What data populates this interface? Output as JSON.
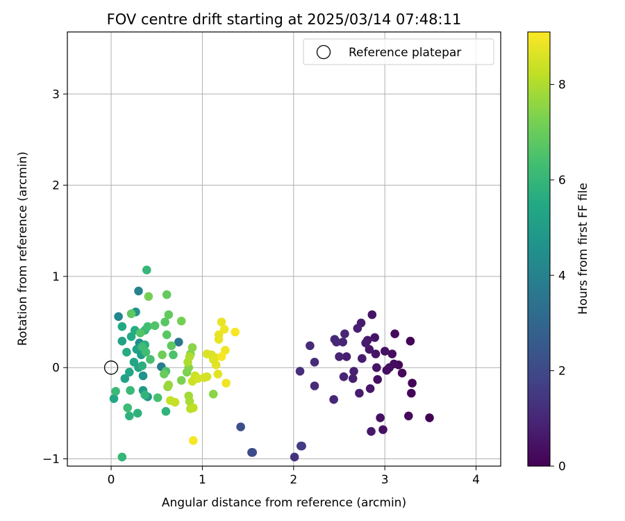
{
  "chart_data": {
    "type": "scatter",
    "title": "FOV centre drift starting at 2025/03/14 07:48:11",
    "xlabel": "Angular distance from reference (arcmin)",
    "ylabel": "Rotation from reference (arcmin)",
    "xlim": [
      -0.48,
      4.27
    ],
    "ylim": [
      -1.08,
      3.68
    ],
    "xticks": [
      "0",
      "1",
      "2",
      "3",
      "4"
    ],
    "yticks": [
      "−1",
      "0",
      "1",
      "2",
      "3"
    ],
    "grid": true,
    "legend": {
      "placement": "top-right",
      "entries": [
        {
          "label": "Reference platepar",
          "marker": "open-circle"
        }
      ]
    },
    "reference_point": {
      "x": 0,
      "y": 0
    },
    "colorbar": {
      "label": "Hours from first FF file",
      "range": [
        0,
        9.1
      ],
      "ticks": [
        "0",
        "2",
        "4",
        "6",
        "8"
      ],
      "colormap": "viridis"
    },
    "points": [
      [
        3.49,
        -0.55,
        0.0
      ],
      [
        3.28,
        0.29,
        0.1
      ],
      [
        3.3,
        -0.17,
        0.1
      ],
      [
        3.29,
        -0.28,
        0.1
      ],
      [
        3.26,
        -0.53,
        0.2
      ],
      [
        3.19,
        -0.06,
        0.2
      ],
      [
        3.15,
        0.03,
        0.2
      ],
      [
        3.11,
        0.37,
        0.2
      ],
      [
        3.1,
        0.04,
        0.3
      ],
      [
        3.08,
        0.15,
        0.3
      ],
      [
        3.05,
        0.0,
        0.3
      ],
      [
        3.02,
        -0.03,
        0.3
      ],
      [
        3.0,
        0.18,
        0.4
      ],
      [
        2.98,
        -0.68,
        0.4
      ],
      [
        2.95,
        -0.55,
        0.4
      ],
      [
        2.92,
        -0.13,
        0.4
      ],
      [
        2.91,
        0.0,
        0.5
      ],
      [
        2.9,
        0.15,
        0.5
      ],
      [
        2.89,
        0.33,
        0.5
      ],
      [
        2.86,
        0.58,
        0.5
      ],
      [
        2.85,
        -0.7,
        0.6
      ],
      [
        2.84,
        -0.23,
        0.6
      ],
      [
        2.83,
        0.2,
        0.6
      ],
      [
        2.81,
        0.3,
        0.6
      ],
      [
        2.79,
        0.27,
        0.7
      ],
      [
        2.75,
        0.1,
        0.7
      ],
      [
        2.74,
        0.49,
        0.7
      ],
      [
        2.72,
        -0.28,
        0.7
      ],
      [
        2.7,
        0.43,
        0.8
      ],
      [
        2.66,
        -0.04,
        0.8
      ],
      [
        2.65,
        -0.12,
        0.8
      ],
      [
        2.58,
        0.12,
        0.8
      ],
      [
        2.56,
        0.37,
        0.9
      ],
      [
        2.55,
        -0.1,
        0.9
      ],
      [
        2.54,
        0.28,
        0.9
      ],
      [
        2.5,
        0.12,
        0.9
      ],
      [
        2.47,
        0.28,
        1.0
      ],
      [
        2.45,
        0.31,
        1.0
      ],
      [
        2.44,
        -0.35,
        1.0
      ],
      [
        2.23,
        0.06,
        1.1
      ],
      [
        2.23,
        -0.2,
        1.1
      ],
      [
        2.18,
        0.24,
        1.1
      ],
      [
        2.07,
        -0.04,
        1.2
      ],
      [
        2.01,
        -0.98,
        1.3
      ],
      [
        2.08,
        -0.86,
        1.5
      ],
      [
        2.09,
        -0.86,
        1.6
      ],
      [
        1.54,
        -0.93,
        2.0
      ],
      [
        1.55,
        -0.93,
        2.1
      ],
      [
        1.42,
        -0.65,
        2.2
      ],
      [
        0.74,
        0.28,
        3.6
      ],
      [
        0.55,
        0.01,
        3.8
      ],
      [
        0.3,
        0.84,
        4.0
      ],
      [
        0.08,
        0.56,
        4.2
      ],
      [
        0.31,
        0.27,
        4.4
      ],
      [
        0.35,
        -0.09,
        4.6
      ],
      [
        0.27,
        0.61,
        4.7
      ],
      [
        0.4,
        -0.32,
        4.8
      ],
      [
        0.35,
        -0.25,
        4.9
      ],
      [
        0.33,
        0.14,
        5.0
      ],
      [
        0.28,
        0.2,
        5.1
      ],
      [
        0.12,
        0.29,
        5.2
      ],
      [
        0.15,
        -0.12,
        5.2
      ],
      [
        0.3,
        0.0,
        5.3
      ],
      [
        0.25,
        0.06,
        5.3
      ],
      [
        0.2,
        -0.05,
        5.4
      ],
      [
        0.03,
        -0.34,
        5.4
      ],
      [
        0.12,
        0.45,
        5.5
      ],
      [
        0.22,
        0.34,
        5.5
      ],
      [
        0.17,
        0.17,
        5.6
      ],
      [
        0.26,
        0.41,
        5.6
      ],
      [
        0.34,
        0.02,
        5.7
      ],
      [
        0.37,
        0.25,
        5.7
      ],
      [
        0.2,
        -0.53,
        5.8
      ],
      [
        0.29,
        -0.5,
        5.8
      ],
      [
        0.37,
        -0.3,
        5.9
      ],
      [
        0.6,
        -0.48,
        5.9
      ],
      [
        0.12,
        -0.98,
        6.0
      ],
      [
        0.37,
        0.41,
        6.0
      ],
      [
        0.39,
        1.07,
        6.0
      ],
      [
        0.05,
        -0.26,
        6.1
      ],
      [
        0.21,
        -0.25,
        6.1
      ],
      [
        0.18,
        -0.44,
        6.2
      ],
      [
        0.34,
        0.23,
        6.2
      ],
      [
        0.38,
        0.17,
        6.3
      ],
      [
        0.4,
        0.45,
        6.3
      ],
      [
        0.43,
        0.09,
        6.4
      ],
      [
        0.51,
        -0.33,
        6.4
      ],
      [
        0.6,
        -0.04,
        6.5
      ],
      [
        0.68,
        0.14,
        6.5
      ],
      [
        0.32,
        0.38,
        6.6
      ],
      [
        0.48,
        0.46,
        6.6
      ],
      [
        0.59,
        0.5,
        6.7
      ],
      [
        0.61,
        0.36,
        6.7
      ],
      [
        0.66,
        0.24,
        6.8
      ],
      [
        0.22,
        0.59,
        6.8
      ],
      [
        0.61,
        0.8,
        6.9
      ],
      [
        0.63,
        0.58,
        6.9
      ],
      [
        0.58,
        -0.07,
        7.0
      ],
      [
        0.56,
        0.14,
        7.1
      ],
      [
        0.41,
        0.78,
        7.2
      ],
      [
        0.77,
        0.51,
        7.2
      ],
      [
        0.77,
        -0.14,
        7.3
      ],
      [
        0.83,
        -0.05,
        7.3
      ],
      [
        0.85,
        0.0,
        7.4
      ],
      [
        0.87,
        0.15,
        7.4
      ],
      [
        0.89,
        0.22,
        7.5
      ],
      [
        1.12,
        -0.29,
        7.5
      ],
      [
        0.62,
        -0.21,
        7.6
      ],
      [
        0.63,
        -0.19,
        7.7
      ],
      [
        0.85,
        -0.31,
        7.8
      ],
      [
        0.86,
        -0.37,
        7.9
      ],
      [
        0.84,
        0.06,
        8.0
      ],
      [
        0.86,
        0.12,
        8.0
      ],
      [
        0.87,
        -0.45,
        8.1
      ],
      [
        0.9,
        -0.44,
        8.2
      ],
      [
        0.65,
        -0.36,
        8.3
      ],
      [
        0.7,
        -0.38,
        8.3
      ],
      [
        0.89,
        -0.15,
        8.4
      ],
      [
        0.92,
        -0.09,
        8.4
      ],
      [
        0.95,
        -0.12,
        8.5
      ],
      [
        1.02,
        -0.11,
        8.5
      ],
      [
        1.05,
        -0.1,
        8.5
      ],
      [
        1.05,
        0.15,
        8.6
      ],
      [
        1.1,
        0.14,
        8.6
      ],
      [
        1.12,
        0.09,
        8.6
      ],
      [
        1.14,
        0.11,
        8.7
      ],
      [
        1.17,
        -0.07,
        8.7
      ],
      [
        1.15,
        0.03,
        8.7
      ],
      [
        1.18,
        0.31,
        8.8
      ],
      [
        1.18,
        0.36,
        8.8
      ],
      [
        1.21,
        0.5,
        8.8
      ],
      [
        1.24,
        0.42,
        8.9
      ],
      [
        1.25,
        0.19,
        8.9
      ],
      [
        1.26,
        -0.17,
        8.9
      ],
      [
        1.21,
        0.12,
        9.0
      ],
      [
        1.36,
        0.39,
        9.0
      ],
      [
        0.9,
        -0.8,
        9.0
      ]
    ]
  }
}
